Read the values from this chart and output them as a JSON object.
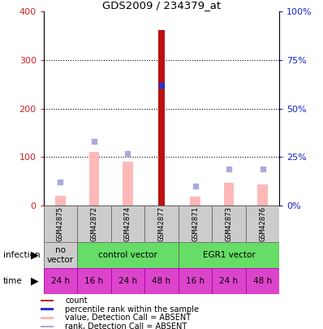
{
  "title": "GDS2009 / 234379_at",
  "samples": [
    "GSM42875",
    "GSM42872",
    "GSM42874",
    "GSM42877",
    "GSM42871",
    "GSM42873",
    "GSM42876"
  ],
  "count_values": [
    0,
    0,
    0,
    362,
    0,
    0,
    0
  ],
  "rank_values_pct": [
    0,
    0,
    0,
    62,
    0,
    0,
    0
  ],
  "absent_value_bars": [
    20,
    110,
    90,
    0,
    18,
    47,
    43
  ],
  "absent_rank_pct": [
    12,
    33,
    27,
    0,
    10,
    19,
    19
  ],
  "ylim_left": [
    0,
    400
  ],
  "ylim_right": [
    0,
    100
  ],
  "yticks_left": [
    0,
    100,
    200,
    300,
    400
  ],
  "yticks_right": [
    0,
    25,
    50,
    75,
    100
  ],
  "yticklabels_right": [
    "0%",
    "25%",
    "50%",
    "75%",
    "100%"
  ],
  "time_labels": [
    "24 h",
    "16 h",
    "24 h",
    "48 h",
    "16 h",
    "24 h",
    "48 h"
  ],
  "count_color": "#bb1111",
  "rank_color": "#2233cc",
  "absent_value_color": "#ffb8b8",
  "absent_rank_color": "#aaaadd",
  "left_tick_color": "#cc2222",
  "right_tick_color": "#1122cc",
  "sample_area_color": "#cccccc",
  "green_color": "#66dd66",
  "no_vector_color": "#cccccc",
  "magenta_color": "#dd44cc",
  "legend_items": [
    {
      "color": "#bb1111",
      "label": "count"
    },
    {
      "color": "#2233cc",
      "label": "percentile rank within the sample"
    },
    {
      "color": "#ffb8b8",
      "label": "value, Detection Call = ABSENT"
    },
    {
      "color": "#aaaadd",
      "label": "rank, Detection Call = ABSENT"
    }
  ]
}
